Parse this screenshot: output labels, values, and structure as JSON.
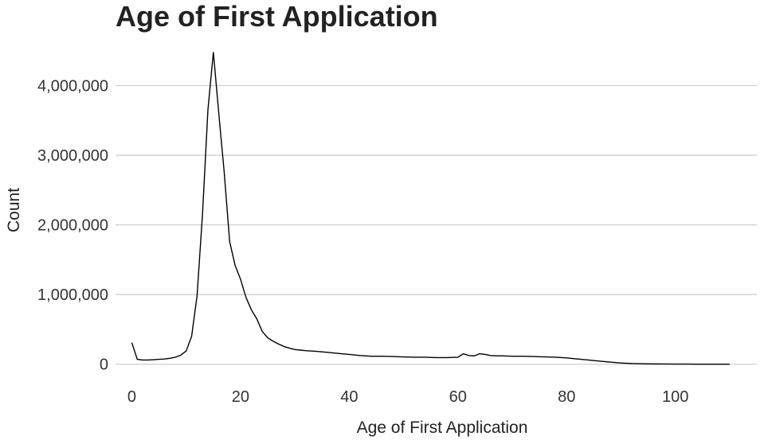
{
  "chart_data": {
    "type": "line",
    "title": "Age of First Application",
    "xlabel": "Age of First Application",
    "ylabel": "Count",
    "xlim": [
      -3,
      115
    ],
    "ylim": [
      -300000,
      4600000
    ],
    "xticks": [
      0,
      20,
      40,
      60,
      80,
      100
    ],
    "xtick_labels": [
      "0",
      "20",
      "40",
      "60",
      "80",
      "100"
    ],
    "yticks": [
      0,
      1000000,
      2000000,
      3000000,
      4000000
    ],
    "ytick_labels": [
      "0",
      "1,000,000",
      "2,000,000",
      "3,000,000",
      "4,000,000"
    ],
    "grid": "horizontal major",
    "series": [
      {
        "x": [
          0,
          1,
          2,
          3,
          4,
          5,
          6,
          7,
          8,
          9,
          10,
          11,
          12,
          13,
          14,
          15,
          16,
          17,
          18,
          19,
          20,
          21,
          22,
          23,
          24,
          25,
          26,
          27,
          28,
          29,
          30,
          32,
          34,
          36,
          38,
          40,
          42,
          44,
          46,
          48,
          50,
          52,
          54,
          56,
          58,
          60,
          61,
          62,
          63,
          64,
          65,
          66,
          67,
          68,
          70,
          72,
          74,
          76,
          78,
          80,
          82,
          84,
          86,
          88,
          90,
          92,
          94,
          96,
          98,
          100,
          102,
          104,
          106,
          108,
          110
        ],
        "values": [
          310000,
          70000,
          60000,
          60000,
          65000,
          70000,
          75000,
          85000,
          100000,
          130000,
          190000,
          400000,
          980000,
          2150000,
          3650000,
          4480000,
          3600000,
          2750000,
          1760000,
          1420000,
          1220000,
          960000,
          780000,
          650000,
          470000,
          380000,
          330000,
          290000,
          255000,
          230000,
          210000,
          195000,
          185000,
          170000,
          155000,
          140000,
          125000,
          115000,
          115000,
          110000,
          105000,
          100000,
          100000,
          95000,
          95000,
          100000,
          150000,
          125000,
          120000,
          150000,
          140000,
          125000,
          120000,
          120000,
          115000,
          115000,
          110000,
          105000,
          100000,
          90000,
          75000,
          60000,
          45000,
          30000,
          18000,
          10000,
          6000,
          4000,
          3000,
          2000,
          1500,
          1000,
          800,
          500,
          300
        ]
      }
    ]
  }
}
